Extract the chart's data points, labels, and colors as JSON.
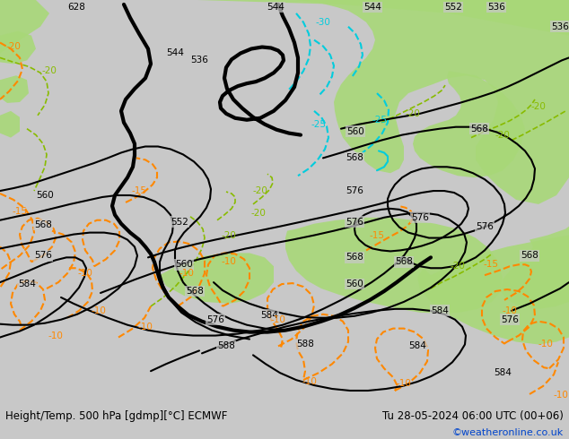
{
  "title_left": "Height/Temp. 500 hPa [gdmp][°C] ECMWF",
  "title_right": "Tu 28-05-2024 06:00 UTC (00+06)",
  "credit": "©weatheronline.co.uk",
  "bg_color": "#c8c8c8",
  "green_color": "#a8d878",
  "cyan_color": "#00ccdd",
  "orange_color": "#ff8800",
  "lyellow_color": "#b8d060",
  "figsize": [
    6.34,
    4.9
  ],
  "dpi": 100,
  "bottom_bar_color": "#e0e0e0",
  "font_size_bottom": 8.5,
  "font_size_credit": 8,
  "font_size_label": 7.5
}
